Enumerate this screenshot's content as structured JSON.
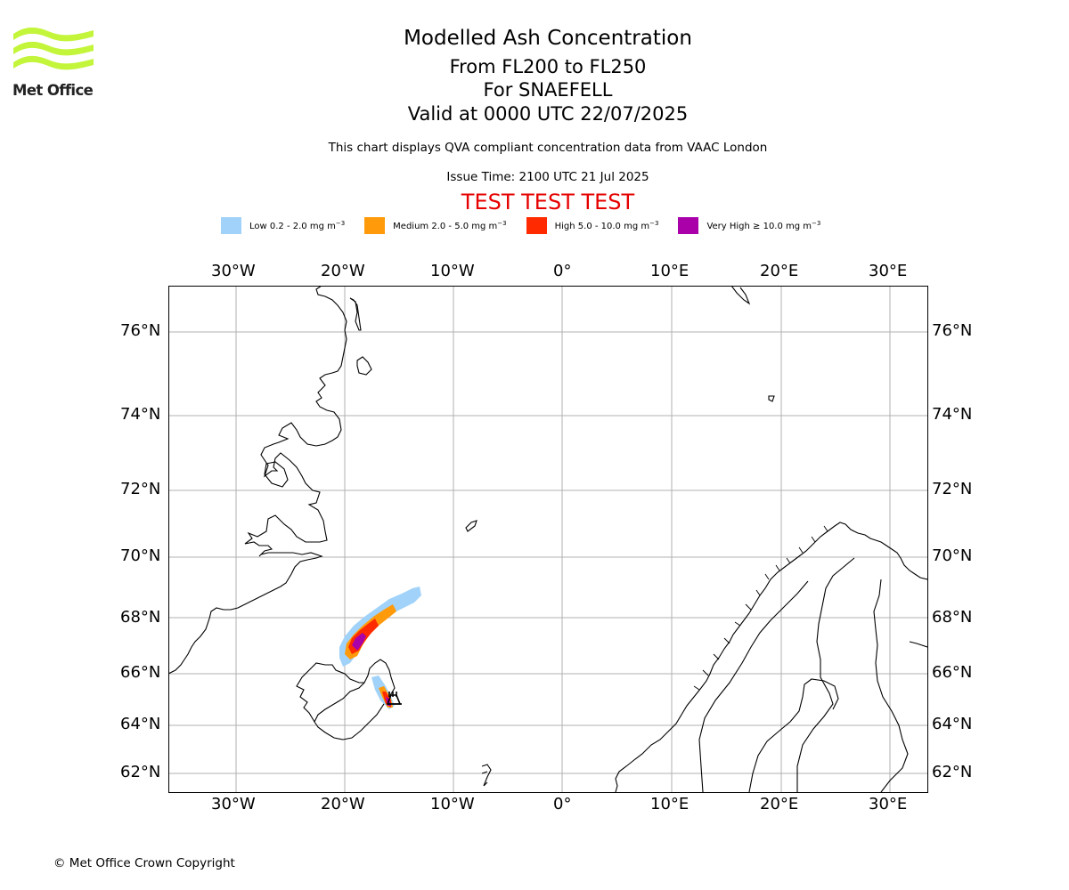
{
  "header": {
    "logo_text": "Met Office",
    "title": "Modelled Ash Concentration",
    "subtitle_levels": "From FL200 to FL250",
    "subtitle_volcano": "For SNAEFELL",
    "subtitle_valid": "Valid at 0000 UTC 22/07/2025",
    "description": "This chart displays QVA compliant concentration data from VAAC London",
    "issue_time": "Issue Time: 2100 UTC 21 Jul 2025",
    "test_banner": "TEST TEST TEST"
  },
  "legend": [
    {
      "label": "Low 0.2 - 2.0 mg m",
      "color": "#a0d2fa"
    },
    {
      "label": "Medium 2.0 - 5.0 mg m",
      "color": "#ff9a0a"
    },
    {
      "label": "High 5.0 - 10.0 mg m",
      "color": "#ff2a00"
    },
    {
      "label": "Very High ≥ 10.0 mg m",
      "color": "#aa00aa"
    }
  ],
  "legend_unit_exponent": "−3",
  "map": {
    "lon_ticks": [
      "30°W",
      "20°W",
      "10°W",
      "0°",
      "10°E",
      "20°E",
      "30°E"
    ],
    "lat_ticks": [
      "76°N",
      "74°N",
      "72°N",
      "70°N",
      "68°N",
      "66°N",
      "64°N",
      "62°N"
    ],
    "gridline_color": "#b0b0b0",
    "volcano_marker": "black-volcano-symbol"
  },
  "footer": {
    "copyright": "© Met Office Crown Copyright"
  }
}
